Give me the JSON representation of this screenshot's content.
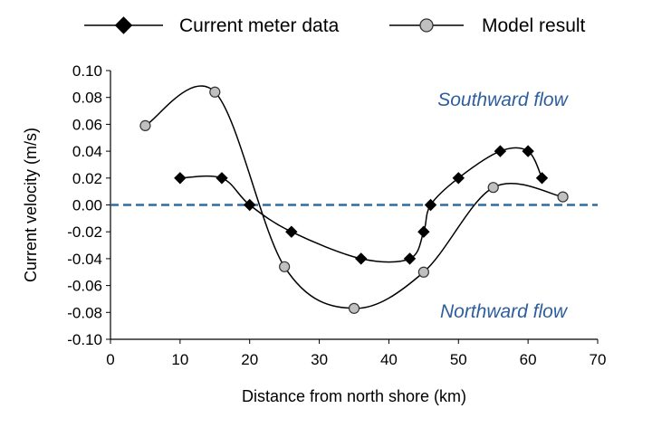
{
  "chart_data": {
    "type": "line",
    "title": "",
    "xlabel": "Distance from north shore (km)",
    "ylabel": "Current velocity (m/s)",
    "xlim": [
      0,
      70
    ],
    "ylim": [
      -0.1,
      0.1
    ],
    "xticks": [
      "0",
      "10",
      "20",
      "30",
      "40",
      "50",
      "60",
      "70"
    ],
    "yticks": [
      "0.10",
      "0.08",
      "0.06",
      "0.04",
      "0.02",
      "0.00",
      "-0.02",
      "-0.04",
      "-0.06",
      "-0.08",
      "-0.10"
    ],
    "grid": false,
    "legend_position": "top-center",
    "reference_line": {
      "y": 0,
      "style": "dashed",
      "color": "#2E6DA4"
    },
    "annotations": [
      {
        "text": "Southward flow",
        "color": "#2E5E9E"
      },
      {
        "text": "Northward flow",
        "color": "#2E5E9E"
      }
    ],
    "series": [
      {
        "name": "Current meter data",
        "marker": "diamond",
        "color": "#000000",
        "x": [
          10,
          16,
          20,
          26,
          36,
          43,
          45,
          46,
          50,
          56,
          60,
          62
        ],
        "y": [
          0.02,
          0.02,
          0.0,
          -0.02,
          -0.04,
          -0.04,
          -0.02,
          0.0,
          0.02,
          0.04,
          0.04,
          0.02
        ]
      },
      {
        "name": "Model result",
        "marker": "circle",
        "color": "#c0c0c0",
        "x": [
          5,
          15,
          25,
          35,
          45,
          55,
          65
        ],
        "y": [
          0.059,
          0.084,
          -0.046,
          -0.077,
          -0.05,
          0.013,
          0.006
        ]
      }
    ]
  }
}
